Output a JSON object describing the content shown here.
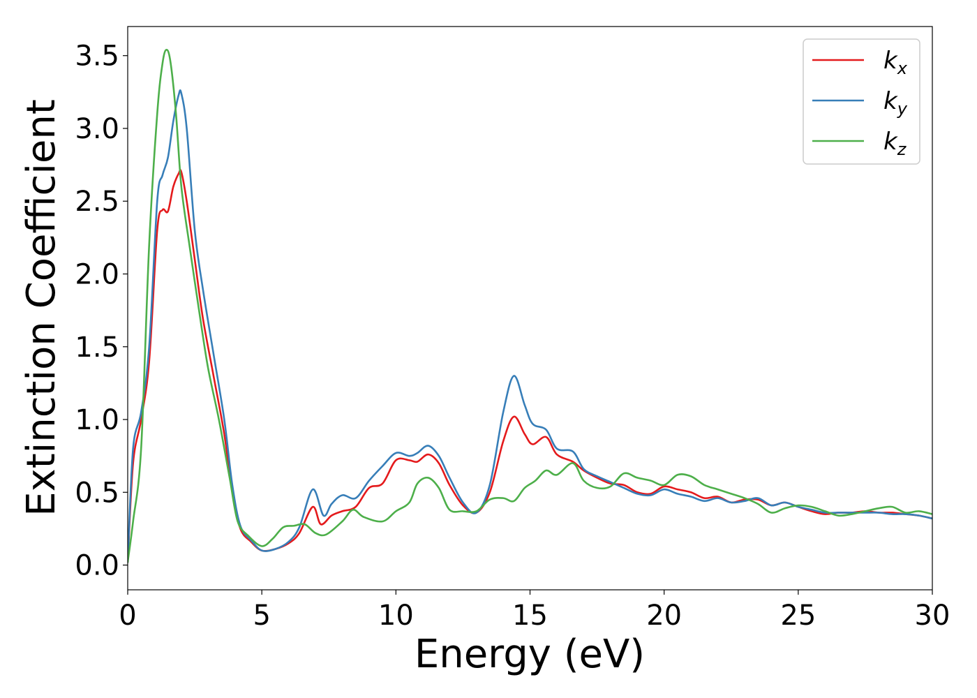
{
  "chart_data": {
    "type": "line",
    "title": "",
    "xlabel": "Energy (eV)",
    "ylabel": "Extinction Coefficient",
    "xlim": [
      0,
      30
    ],
    "ylim": [
      -0.17,
      3.7
    ],
    "xticks": [
      0,
      5,
      10,
      15,
      20,
      25,
      30
    ],
    "xtick_labels": [
      "0",
      "5",
      "10",
      "15",
      "20",
      "25",
      "30"
    ],
    "yticks": [
      0.0,
      0.5,
      1.0,
      1.5,
      2.0,
      2.5,
      3.0,
      3.5
    ],
    "ytick_labels": [
      "0.0",
      "0.5",
      "1.0",
      "1.5",
      "2.0",
      "2.5",
      "3.0",
      "3.5"
    ],
    "grid": false,
    "legend_position": "top-right",
    "series": [
      {
        "name": "k_x",
        "legend_base": "k",
        "legend_sub": "x",
        "color": "#e41a1c",
        "points": [
          [
            0,
            0.02
          ],
          [
            0.2,
            0.7
          ],
          [
            0.5,
            1.0
          ],
          [
            0.8,
            1.4
          ],
          [
            1.1,
            2.3
          ],
          [
            1.3,
            2.44
          ],
          [
            1.5,
            2.43
          ],
          [
            1.7,
            2.6
          ],
          [
            1.9,
            2.69
          ],
          [
            2.0,
            2.7
          ],
          [
            2.2,
            2.5
          ],
          [
            2.5,
            2.1
          ],
          [
            2.8,
            1.7
          ],
          [
            3.2,
            1.3
          ],
          [
            3.6,
            0.9
          ],
          [
            3.9,
            0.5
          ],
          [
            4.2,
            0.25
          ],
          [
            4.6,
            0.16
          ],
          [
            5.0,
            0.1
          ],
          [
            5.5,
            0.11
          ],
          [
            6.0,
            0.15
          ],
          [
            6.4,
            0.22
          ],
          [
            6.9,
            0.4
          ],
          [
            7.2,
            0.28
          ],
          [
            7.6,
            0.34
          ],
          [
            8.0,
            0.37
          ],
          [
            8.5,
            0.4
          ],
          [
            9.0,
            0.53
          ],
          [
            9.5,
            0.56
          ],
          [
            10.0,
            0.72
          ],
          [
            10.5,
            0.72
          ],
          [
            10.8,
            0.71
          ],
          [
            11.2,
            0.76
          ],
          [
            11.6,
            0.7
          ],
          [
            12.0,
            0.55
          ],
          [
            12.5,
            0.41
          ],
          [
            13.0,
            0.36
          ],
          [
            13.5,
            0.5
          ],
          [
            14.0,
            0.85
          ],
          [
            14.4,
            1.02
          ],
          [
            14.8,
            0.9
          ],
          [
            15.1,
            0.83
          ],
          [
            15.6,
            0.88
          ],
          [
            16.0,
            0.76
          ],
          [
            16.6,
            0.71
          ],
          [
            17.0,
            0.65
          ],
          [
            17.5,
            0.6
          ],
          [
            18.0,
            0.56
          ],
          [
            18.5,
            0.55
          ],
          [
            19.0,
            0.5
          ],
          [
            19.5,
            0.49
          ],
          [
            20.0,
            0.54
          ],
          [
            20.5,
            0.52
          ],
          [
            21.0,
            0.5
          ],
          [
            21.5,
            0.46
          ],
          [
            22.0,
            0.47
          ],
          [
            22.5,
            0.43
          ],
          [
            23.0,
            0.45
          ],
          [
            23.5,
            0.45
          ],
          [
            24.0,
            0.41
          ],
          [
            24.5,
            0.43
          ],
          [
            25.0,
            0.4
          ],
          [
            25.5,
            0.37
          ],
          [
            26.0,
            0.35
          ],
          [
            26.5,
            0.36
          ],
          [
            27.0,
            0.36
          ],
          [
            27.5,
            0.37
          ],
          [
            28.0,
            0.36
          ],
          [
            28.5,
            0.36
          ],
          [
            29.0,
            0.35
          ],
          [
            29.5,
            0.34
          ],
          [
            30.0,
            0.32
          ]
        ]
      },
      {
        "name": "k_y",
        "legend_base": "k",
        "legend_sub": "y",
        "color": "#377eb8",
        "points": [
          [
            0,
            0.02
          ],
          [
            0.2,
            0.8
          ],
          [
            0.5,
            1.05
          ],
          [
            0.8,
            1.5
          ],
          [
            1.1,
            2.5
          ],
          [
            1.3,
            2.68
          ],
          [
            1.5,
            2.8
          ],
          [
            1.7,
            3.05
          ],
          [
            1.9,
            3.23
          ],
          [
            2.0,
            3.24
          ],
          [
            2.2,
            3.0
          ],
          [
            2.5,
            2.3
          ],
          [
            2.8,
            1.9
          ],
          [
            3.2,
            1.45
          ],
          [
            3.6,
            1.0
          ],
          [
            3.9,
            0.55
          ],
          [
            4.2,
            0.27
          ],
          [
            4.6,
            0.17
          ],
          [
            5.0,
            0.1
          ],
          [
            5.5,
            0.11
          ],
          [
            6.0,
            0.16
          ],
          [
            6.4,
            0.26
          ],
          [
            6.9,
            0.52
          ],
          [
            7.3,
            0.34
          ],
          [
            7.6,
            0.42
          ],
          [
            8.0,
            0.48
          ],
          [
            8.5,
            0.46
          ],
          [
            9.0,
            0.58
          ],
          [
            9.5,
            0.68
          ],
          [
            10.0,
            0.77
          ],
          [
            10.5,
            0.75
          ],
          [
            10.8,
            0.77
          ],
          [
            11.2,
            0.82
          ],
          [
            11.6,
            0.75
          ],
          [
            12.0,
            0.6
          ],
          [
            12.5,
            0.43
          ],
          [
            13.0,
            0.36
          ],
          [
            13.5,
            0.55
          ],
          [
            14.0,
            1.05
          ],
          [
            14.4,
            1.3
          ],
          [
            14.8,
            1.1
          ],
          [
            15.1,
            0.97
          ],
          [
            15.6,
            0.93
          ],
          [
            16.0,
            0.8
          ],
          [
            16.6,
            0.78
          ],
          [
            17.0,
            0.66
          ],
          [
            17.5,
            0.61
          ],
          [
            18.0,
            0.57
          ],
          [
            18.5,
            0.53
          ],
          [
            19.0,
            0.49
          ],
          [
            19.5,
            0.48
          ],
          [
            20.0,
            0.52
          ],
          [
            20.5,
            0.49
          ],
          [
            21.0,
            0.47
          ],
          [
            21.5,
            0.44
          ],
          [
            22.0,
            0.46
          ],
          [
            22.5,
            0.43
          ],
          [
            23.0,
            0.44
          ],
          [
            23.5,
            0.46
          ],
          [
            24.0,
            0.41
          ],
          [
            24.5,
            0.43
          ],
          [
            25.0,
            0.4
          ],
          [
            25.5,
            0.38
          ],
          [
            26.0,
            0.36
          ],
          [
            26.5,
            0.36
          ],
          [
            27.0,
            0.36
          ],
          [
            27.5,
            0.36
          ],
          [
            28.0,
            0.36
          ],
          [
            28.5,
            0.35
          ],
          [
            29.0,
            0.35
          ],
          [
            29.5,
            0.34
          ],
          [
            30.0,
            0.32
          ]
        ]
      },
      {
        "name": "k_z",
        "legend_base": "k",
        "legend_sub": "z",
        "color": "#4daf4a",
        "points": [
          [
            0,
            0.02
          ],
          [
            0.2,
            0.3
          ],
          [
            0.5,
            0.8
          ],
          [
            0.8,
            2.2
          ],
          [
            1.1,
            3.1
          ],
          [
            1.3,
            3.45
          ],
          [
            1.45,
            3.54
          ],
          [
            1.6,
            3.45
          ],
          [
            1.8,
            3.1
          ],
          [
            2.0,
            2.6
          ],
          [
            2.3,
            2.2
          ],
          [
            2.7,
            1.7
          ],
          [
            3.0,
            1.35
          ],
          [
            3.4,
            1.0
          ],
          [
            3.8,
            0.6
          ],
          [
            4.1,
            0.3
          ],
          [
            4.5,
            0.2
          ],
          [
            5.0,
            0.13
          ],
          [
            5.4,
            0.18
          ],
          [
            5.8,
            0.26
          ],
          [
            6.2,
            0.27
          ],
          [
            6.6,
            0.28
          ],
          [
            7.0,
            0.22
          ],
          [
            7.4,
            0.21
          ],
          [
            8.0,
            0.3
          ],
          [
            8.4,
            0.38
          ],
          [
            8.8,
            0.33
          ],
          [
            9.5,
            0.3
          ],
          [
            10.0,
            0.37
          ],
          [
            10.5,
            0.43
          ],
          [
            10.8,
            0.56
          ],
          [
            11.2,
            0.6
          ],
          [
            11.6,
            0.53
          ],
          [
            12.0,
            0.38
          ],
          [
            12.5,
            0.37
          ],
          [
            13.0,
            0.37
          ],
          [
            13.5,
            0.45
          ],
          [
            14.0,
            0.46
          ],
          [
            14.4,
            0.44
          ],
          [
            14.8,
            0.53
          ],
          [
            15.2,
            0.58
          ],
          [
            15.6,
            0.65
          ],
          [
            16.0,
            0.62
          ],
          [
            16.6,
            0.7
          ],
          [
            17.0,
            0.58
          ],
          [
            17.5,
            0.53
          ],
          [
            18.0,
            0.54
          ],
          [
            18.5,
            0.63
          ],
          [
            19.0,
            0.6
          ],
          [
            19.5,
            0.58
          ],
          [
            20.0,
            0.55
          ],
          [
            20.5,
            0.62
          ],
          [
            21.0,
            0.61
          ],
          [
            21.5,
            0.55
          ],
          [
            22.0,
            0.52
          ],
          [
            22.5,
            0.49
          ],
          [
            23.0,
            0.46
          ],
          [
            23.5,
            0.42
          ],
          [
            24.0,
            0.36
          ],
          [
            24.5,
            0.39
          ],
          [
            25.0,
            0.41
          ],
          [
            25.5,
            0.4
          ],
          [
            26.0,
            0.37
          ],
          [
            26.5,
            0.34
          ],
          [
            27.0,
            0.35
          ],
          [
            27.5,
            0.37
          ],
          [
            28.0,
            0.39
          ],
          [
            28.5,
            0.4
          ],
          [
            29.0,
            0.36
          ],
          [
            29.5,
            0.37
          ],
          [
            30.0,
            0.35
          ]
        ]
      }
    ]
  }
}
